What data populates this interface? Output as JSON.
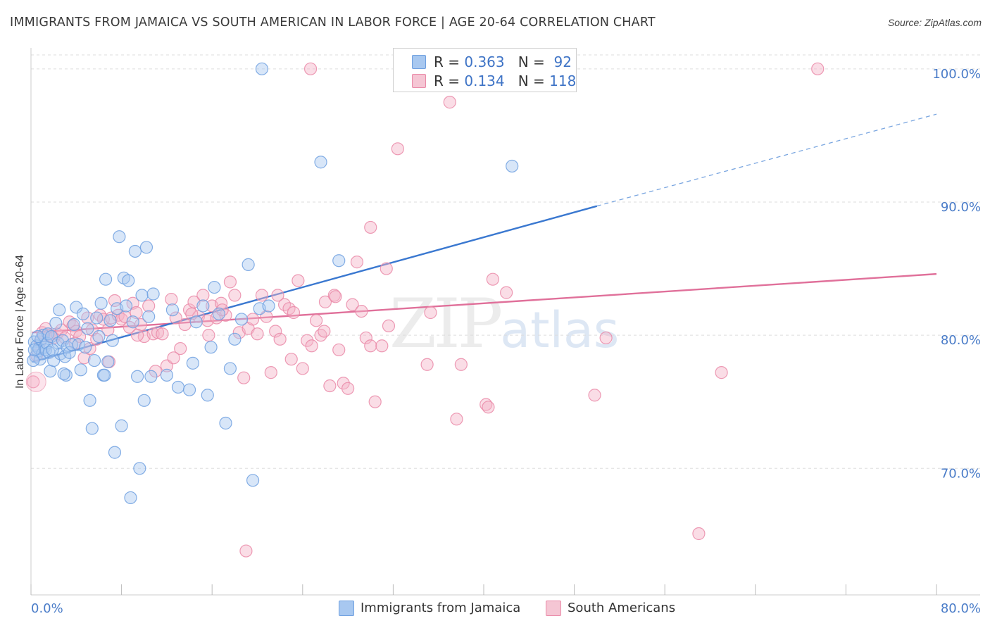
{
  "title": "IMMIGRANTS FROM JAMAICA VS SOUTH AMERICAN IN LABOR FORCE | AGE 20-64 CORRELATION CHART",
  "source": "Source: ZipAtlas.com",
  "watermark": {
    "zip": "ZIP",
    "atlas": "atlas"
  },
  "legend": {
    "rows": [
      {
        "r_label": "R =",
        "r_value": "0.363",
        "n_label": "N =",
        "n_value": "92",
        "color": "#a8c8f0"
      },
      {
        "r_label": "R =",
        "r_value": "0.134",
        "n_label": "N =",
        "n_value": "118",
        "color": "#f5b3c8"
      }
    ]
  },
  "bottom_legend": [
    {
      "label": "Immigrants from Jamaica",
      "color": "#a8c8f0"
    },
    {
      "label": "South Americans",
      "color": "#f5b3c8"
    }
  ],
  "chart_data": {
    "type": "scatter",
    "title": "IMMIGRANTS FROM JAMAICA VS SOUTH AMERICAN IN LABOR FORCE | AGE 20-64 CORRELATION CHART",
    "xlabel": "",
    "ylabel": "In Labor Force | Age 20-64",
    "xlim": [
      0,
      80
    ],
    "ylim": [
      60.5,
      102
    ],
    "x_tick_labels": [
      "0.0%",
      "80.0%"
    ],
    "y_ticks": [
      70,
      80,
      90,
      100
    ],
    "y_tick_labels": [
      "70.0%",
      "80.0%",
      "90.0%",
      "100.0%"
    ],
    "grid": true,
    "legend_placement": "top-center",
    "series": [
      {
        "name": "Immigrants from Jamaica",
        "color": "#6fa0e0",
        "fill": "#a8c8f0",
        "R": 0.363,
        "N": 92,
        "trend": {
          "x0": 0.1,
          "y0": 78.0,
          "x1": 50,
          "y1": 89.7,
          "dash_x1": 80,
          "dash_y1": 96.6
        },
        "points": [
          [
            0.3,
            79.5
          ],
          [
            0.4,
            78.4
          ],
          [
            0.5,
            79.2
          ],
          [
            0.6,
            78.8
          ],
          [
            0.7,
            79.0
          ],
          [
            0.8,
            78.2
          ],
          [
            0.9,
            79.7
          ],
          [
            1.0,
            78.6
          ],
          [
            1.1,
            80.0
          ],
          [
            1.2,
            79.1
          ],
          [
            1.3,
            78.9
          ],
          [
            1.4,
            79.4
          ],
          [
            1.5,
            80.1
          ],
          [
            1.6,
            78.7
          ],
          [
            1.7,
            77.3
          ],
          [
            1.8,
            79.9
          ],
          [
            2.0,
            78.1
          ],
          [
            2.2,
            80.9
          ],
          [
            2.4,
            79.4
          ],
          [
            2.5,
            81.9
          ],
          [
            2.6,
            78.6
          ],
          [
            2.8,
            79.6
          ],
          [
            3.0,
            78.4
          ],
          [
            3.1,
            77.0
          ],
          [
            3.2,
            79.1
          ],
          [
            3.4,
            78.7
          ],
          [
            3.6,
            79.3
          ],
          [
            3.8,
            80.8
          ],
          [
            4.0,
            82.1
          ],
          [
            4.2,
            79.3
          ],
          [
            4.4,
            77.4
          ],
          [
            4.6,
            81.6
          ],
          [
            4.8,
            79.1
          ],
          [
            5.0,
            80.5
          ],
          [
            5.2,
            75.1
          ],
          [
            5.4,
            73.0
          ],
          [
            5.6,
            78.1
          ],
          [
            5.8,
            81.3
          ],
          [
            6.0,
            79.9
          ],
          [
            6.2,
            82.4
          ],
          [
            6.4,
            77.0
          ],
          [
            6.6,
            84.2
          ],
          [
            6.8,
            78.0
          ],
          [
            7.0,
            81.1
          ],
          [
            7.2,
            79.6
          ],
          [
            7.4,
            71.2
          ],
          [
            7.6,
            82.0
          ],
          [
            7.8,
            87.4
          ],
          [
            8.0,
            73.2
          ],
          [
            8.2,
            84.3
          ],
          [
            8.4,
            82.2
          ],
          [
            8.6,
            84.1
          ],
          [
            8.8,
            67.8
          ],
          [
            9.0,
            81.0
          ],
          [
            9.2,
            86.3
          ],
          [
            9.4,
            76.9
          ],
          [
            9.6,
            70.0
          ],
          [
            9.8,
            83.0
          ],
          [
            10.0,
            75.1
          ],
          [
            10.2,
            86.6
          ],
          [
            10.4,
            81.4
          ],
          [
            10.6,
            76.9
          ],
          [
            10.8,
            83.1
          ],
          [
            12.0,
            77.0
          ],
          [
            12.5,
            81.9
          ],
          [
            13.0,
            76.1
          ],
          [
            14.0,
            75.9
          ],
          [
            14.3,
            77.9
          ],
          [
            14.6,
            81.0
          ],
          [
            15.2,
            82.2
          ],
          [
            15.6,
            75.5
          ],
          [
            15.9,
            79.1
          ],
          [
            16.2,
            83.6
          ],
          [
            16.6,
            81.6
          ],
          [
            17.2,
            73.4
          ],
          [
            17.6,
            77.5
          ],
          [
            18.0,
            79.7
          ],
          [
            18.6,
            81.2
          ],
          [
            19.2,
            85.3
          ],
          [
            19.6,
            69.1
          ],
          [
            20.2,
            82.0
          ],
          [
            20.4,
            100.0
          ],
          [
            21.0,
            82.2
          ],
          [
            25.6,
            93.0
          ],
          [
            27.2,
            85.6
          ],
          [
            42.5,
            92.7
          ],
          [
            0.2,
            78.1
          ],
          [
            0.6,
            79.9
          ],
          [
            1.9,
            78.9
          ],
          [
            2.9,
            77.1
          ],
          [
            0.3,
            78.9
          ],
          [
            6.5,
            77.0
          ]
        ]
      },
      {
        "name": "South Americans",
        "color": "#ea8aa8",
        "fill": "#f5b3c8",
        "R": 0.134,
        "N": 118,
        "trend": {
          "x0": 0.1,
          "y0": 80.2,
          "x1": 80,
          "y1": 84.6
        },
        "points": [
          [
            0.2,
            76.5
          ],
          [
            0.5,
            78.5
          ],
          [
            0.8,
            79.5
          ],
          [
            1.0,
            80.2
          ],
          [
            1.3,
            80.5
          ],
          [
            1.6,
            80.0
          ],
          [
            2.0,
            79.8
          ],
          [
            2.3,
            80.1
          ],
          [
            2.7,
            80.4
          ],
          [
            3.0,
            79.8
          ],
          [
            3.4,
            81.0
          ],
          [
            3.7,
            80.7
          ],
          [
            4.0,
            80.3
          ],
          [
            4.3,
            79.9
          ],
          [
            4.7,
            78.3
          ],
          [
            5.0,
            81.3
          ],
          [
            5.4,
            80.4
          ],
          [
            5.8,
            79.7
          ],
          [
            6.1,
            81.5
          ],
          [
            6.4,
            81.2
          ],
          [
            6.8,
            80.4
          ],
          [
            7.1,
            81.3
          ],
          [
            7.4,
            82.6
          ],
          [
            7.7,
            81.5
          ],
          [
            8.0,
            81.2
          ],
          [
            8.3,
            81.4
          ],
          [
            8.7,
            80.6
          ],
          [
            9.0,
            82.4
          ],
          [
            9.3,
            81.7
          ],
          [
            9.7,
            80.8
          ],
          [
            10.0,
            79.9
          ],
          [
            10.4,
            82.2
          ],
          [
            10.8,
            80.1
          ],
          [
            11.2,
            80.2
          ],
          [
            11.6,
            80.1
          ],
          [
            12.0,
            77.7
          ],
          [
            12.4,
            82.7
          ],
          [
            12.8,
            81.3
          ],
          [
            13.2,
            79.0
          ],
          [
            13.6,
            80.8
          ],
          [
            14.0,
            81.9
          ],
          [
            14.4,
            82.5
          ],
          [
            14.8,
            81.4
          ],
          [
            15.2,
            83.0
          ],
          [
            15.6,
            81.1
          ],
          [
            16.0,
            82.2
          ],
          [
            16.4,
            81.3
          ],
          [
            16.8,
            82.4
          ],
          [
            17.2,
            81.5
          ],
          [
            17.6,
            84.0
          ],
          [
            18.0,
            83.0
          ],
          [
            18.4,
            80.2
          ],
          [
            18.8,
            76.8
          ],
          [
            19.2,
            80.5
          ],
          [
            19.6,
            81.2
          ],
          [
            20.0,
            80.1
          ],
          [
            20.4,
            83.0
          ],
          [
            20.8,
            81.4
          ],
          [
            21.2,
            77.2
          ],
          [
            21.6,
            80.3
          ],
          [
            22.0,
            79.7
          ],
          [
            22.4,
            82.3
          ],
          [
            22.8,
            82.0
          ],
          [
            23.2,
            81.7
          ],
          [
            23.6,
            84.1
          ],
          [
            24.0,
            77.5
          ],
          [
            24.4,
            79.6
          ],
          [
            24.8,
            79.2
          ],
          [
            25.2,
            81.1
          ],
          [
            25.6,
            80.0
          ],
          [
            26.0,
            82.5
          ],
          [
            26.4,
            76.2
          ],
          [
            26.8,
            83.0
          ],
          [
            27.2,
            78.9
          ],
          [
            27.6,
            76.4
          ],
          [
            28.0,
            76.0
          ],
          [
            28.4,
            82.3
          ],
          [
            28.8,
            85.5
          ],
          [
            29.2,
            81.8
          ],
          [
            29.6,
            79.8
          ],
          [
            30.0,
            79.2
          ],
          [
            30.4,
            75.0
          ],
          [
            31.0,
            79.2
          ],
          [
            31.4,
            85.0
          ],
          [
            32.4,
            94.0
          ],
          [
            30.0,
            88.1
          ],
          [
            35.0,
            77.8
          ],
          [
            35.3,
            81.7
          ],
          [
            37.6,
            73.7
          ],
          [
            38.0,
            77.8
          ],
          [
            40.2,
            74.8
          ],
          [
            40.4,
            74.6
          ],
          [
            40.8,
            84.2
          ],
          [
            42.0,
            83.2
          ],
          [
            49.8,
            75.5
          ],
          [
            50.8,
            79.8
          ],
          [
            59.0,
            65.1
          ],
          [
            61.0,
            77.2
          ],
          [
            69.5,
            100.0
          ],
          [
            24.7,
            100.0
          ],
          [
            32.8,
            100.0
          ],
          [
            33.3,
            100.0
          ],
          [
            37.0,
            97.5
          ],
          [
            19.0,
            63.8
          ],
          [
            21.8,
            83.0
          ],
          [
            23.0,
            78.2
          ],
          [
            25.9,
            80.3
          ],
          [
            26.9,
            82.9
          ],
          [
            31.6,
            80.7
          ],
          [
            12.6,
            78.3
          ],
          [
            9.4,
            80.0
          ],
          [
            11.0,
            77.3
          ],
          [
            14.2,
            81.6
          ],
          [
            15.7,
            80.0
          ],
          [
            16.9,
            81.9
          ],
          [
            3.9,
            79.4
          ],
          [
            5.2,
            79.0
          ],
          [
            6.9,
            78.0
          ]
        ]
      }
    ]
  }
}
